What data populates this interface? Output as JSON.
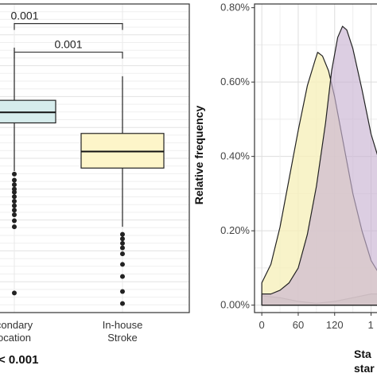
{
  "chart_data": [
    {
      "type": "box",
      "categories": [
        "Secondary location",
        "In-house Stroke"
      ],
      "category_lines": [
        [
          "condary",
          "ocation"
        ],
        [
          "In-house",
          "Stroke"
        ]
      ],
      "boxes": [
        {
          "name": "Secondary location",
          "q1": 0.86,
          "median": 0.93,
          "q3": 1.01,
          "whisker_low": 0.54,
          "whisker_high": 1.36,
          "outliers": [
            0.52,
            0.48,
            0.45,
            0.42,
            0.4,
            0.37,
            0.34,
            0.31,
            0.28,
            0.25,
            0.21,
            0.17,
            -0.27
          ],
          "fill": "#d6ecec"
        },
        {
          "name": "In-house Stroke",
          "q1": 0.56,
          "median": 0.67,
          "q3": 0.79,
          "whisker_low": 0.17,
          "whisker_high": 1.17,
          "outliers": [
            0.12,
            0.09,
            0.06,
            0.03,
            -0.01,
            -0.08,
            -0.16,
            -0.26,
            -0.34
          ],
          "fill": "#fdf5c9"
        }
      ],
      "ylim": [
        -0.4,
        1.65
      ],
      "grid": true,
      "brackets": [
        {
          "label": "0.001",
          "from": 0,
          "to": 1,
          "level": 1.52
        },
        {
          "label": "0.001",
          "from": 0,
          "to": 1,
          "level": 1.33
        }
      ],
      "footnote": "< 0.001"
    },
    {
      "type": "area",
      "ylabel": "Relative frequency",
      "xlabel_lines": [
        "Sta",
        "star"
      ],
      "xlim": [
        -12,
        195
      ],
      "ylim": [
        -0.0002,
        0.0081
      ],
      "x_ticks": [
        0,
        60,
        120
      ],
      "x_tick_labels": [
        "0",
        "60",
        "120"
      ],
      "x_tick_partial": "1",
      "y_ticks": [
        0,
        0.002,
        0.004,
        0.006,
        0.008
      ],
      "y_tick_labels": [
        "0.00%",
        "0.20%",
        "0.40%",
        "0.60%",
        "0.80%"
      ],
      "grid": true,
      "series": [
        {
          "fill": "#b7c7ab",
          "stroke": "#222222",
          "opacity": 0.95,
          "points": [
            [
              0,
              0.00025
            ],
            [
              30,
              0.0002
            ],
            [
              60,
              0.0001
            ],
            [
              90,
              5e-05
            ],
            [
              120,
              0.0001
            ],
            [
              150,
              0.0002
            ],
            [
              180,
              0.0003
            ],
            [
              195,
              0.0003
            ]
          ]
        },
        {
          "fill": "#f6f0bc",
          "stroke": "#222222",
          "opacity": 0.8,
          "points": [
            [
              0,
              0.0006
            ],
            [
              15,
              0.0011
            ],
            [
              30,
              0.0021
            ],
            [
              45,
              0.0034
            ],
            [
              60,
              0.0047
            ],
            [
              75,
              0.0059
            ],
            [
              88,
              0.0066
            ],
            [
              92,
              0.0068
            ],
            [
              100,
              0.0067
            ],
            [
              110,
              0.0063
            ],
            [
              120,
              0.0056
            ],
            [
              135,
              0.0043
            ],
            [
              150,
              0.003
            ],
            [
              165,
              0.002
            ],
            [
              180,
              0.0012
            ],
            [
              195,
              0.0008
            ]
          ]
        },
        {
          "fill": "#c9b3d2",
          "stroke": "#222222",
          "opacity": 0.65,
          "points": [
            [
              0,
              0.0003
            ],
            [
              15,
              0.0003
            ],
            [
              30,
              0.0004
            ],
            [
              45,
              0.0006
            ],
            [
              60,
              0.001
            ],
            [
              75,
              0.0019
            ],
            [
              90,
              0.0032
            ],
            [
              105,
              0.0049
            ],
            [
              115,
              0.0063
            ],
            [
              125,
              0.0072
            ],
            [
              133,
              0.0075
            ],
            [
              140,
              0.0074
            ],
            [
              150,
              0.0069
            ],
            [
              165,
              0.0058
            ],
            [
              180,
              0.0046
            ],
            [
              195,
              0.0038
            ]
          ]
        }
      ]
    }
  ]
}
